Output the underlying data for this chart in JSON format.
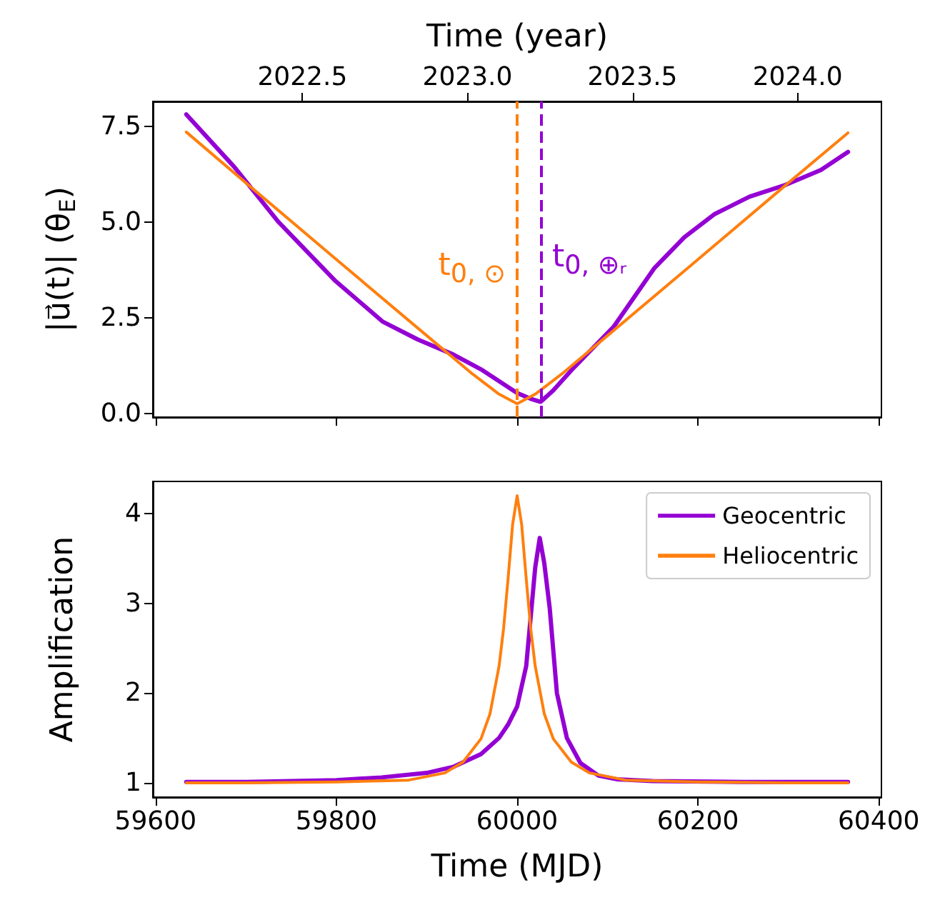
{
  "chart_data": [
    {
      "type": "line",
      "ylabel": "|u⃗(t)| (θ$_{E}$)",
      "x2label": "Time (year)",
      "xlim": [
        59597,
        60403
      ],
      "xticks": [
        59600,
        59800,
        60000,
        60200,
        60400
      ],
      "x2lim": [
        2022.047,
        2024.254
      ],
      "x2ticks": [
        2022.5,
        {
          "value": 2023,
          "label": "2023.0"
        },
        2023.5,
        {
          "value": 2024,
          "label": "2024.0"
        }
      ],
      "ylim": [
        -0.1,
        8.15
      ],
      "yticks": [
        {
          "value": 0,
          "label": "0.0"
        },
        2.5,
        {
          "value": 5,
          "label": "5.0"
        },
        7.5
      ],
      "tick_labels": "y",
      "series": [
        {
          "color": "#9400d3",
          "x": [
            59634,
            59687,
            59736,
            59798,
            59851,
            59890,
            59929,
            59960,
            60000,
            60015,
            60026,
            60040,
            60061,
            60107,
            60152,
            60185,
            60218,
            60257,
            60297,
            60336,
            60366
          ],
          "values": [
            7.81,
            6.44,
            5.0,
            3.48,
            2.4,
            1.93,
            1.54,
            1.15,
            0.53,
            0.38,
            0.3,
            0.6,
            1.15,
            2.27,
            3.8,
            4.6,
            5.2,
            5.66,
            5.97,
            6.36,
            6.83
          ]
        },
        {
          "color": "#ff7f0e",
          "x": [
            59634,
            59700,
            59800,
            59900,
            59950,
            59980,
            60000,
            60020,
            60050,
            60100,
            60200,
            60300,
            60366
          ],
          "values": [
            7.35,
            6.02,
            4.02,
            2.03,
            1.04,
            0.5,
            0.25,
            0.5,
            1.04,
            2.03,
            4.02,
            6.02,
            7.33
          ]
        }
      ],
      "ref_lines": [
        {
          "axis": "x",
          "value": 60000,
          "label": "t$_{0, ⊙}$",
          "color": "#ff7f0e",
          "line_style": "dashed"
        },
        {
          "axis": "x",
          "value": 60026,
          "label": "t$_{0, ⊕ᵣ}$",
          "color": "#9400d3",
          "line_style": "dashed"
        }
      ]
    },
    {
      "type": "line",
      "xlabel": "Time (MJD)",
      "ylabel": "Amplification",
      "xlim": [
        59597,
        60403
      ],
      "xticks": [
        59600,
        59800,
        60000,
        60200,
        60400
      ],
      "ylim": [
        0.84,
        4.36
      ],
      "yticks": [
        1,
        2,
        3,
        4
      ],
      "legend": "top right",
      "series": [
        {
          "name": "Geocentric",
          "color": "#9400d3",
          "x": [
            59634,
            59700,
            59800,
            59850,
            59900,
            59930,
            59960,
            59980,
            59990,
            60000,
            60010,
            60015,
            60020,
            60025,
            60030,
            60036,
            60044,
            60055,
            60070,
            60090,
            60110,
            60150,
            60250,
            60366
          ],
          "values": [
            1.01,
            1.01,
            1.03,
            1.06,
            1.11,
            1.18,
            1.32,
            1.5,
            1.65,
            1.85,
            2.3,
            2.85,
            3.4,
            3.73,
            3.45,
            2.95,
            2.0,
            1.5,
            1.22,
            1.08,
            1.04,
            1.02,
            1.01,
            1.01
          ]
        },
        {
          "name": "Heliocentric",
          "color": "#ff7f0e",
          "x": [
            59634,
            59700,
            59800,
            59880,
            59920,
            59940,
            59960,
            59970,
            59980,
            59985,
            59990,
            59995,
            60000,
            60005,
            60010,
            60015,
            60020,
            60030,
            60040,
            60060,
            60080,
            60120,
            60200,
            60300,
            60366
          ],
          "values": [
            1.0,
            1.0,
            1.01,
            1.03,
            1.11,
            1.23,
            1.49,
            1.77,
            2.3,
            2.72,
            3.28,
            3.88,
            4.2,
            3.88,
            3.28,
            2.72,
            2.3,
            1.77,
            1.49,
            1.23,
            1.11,
            1.03,
            1.01,
            1.0,
            1.0
          ]
        }
      ]
    }
  ]
}
